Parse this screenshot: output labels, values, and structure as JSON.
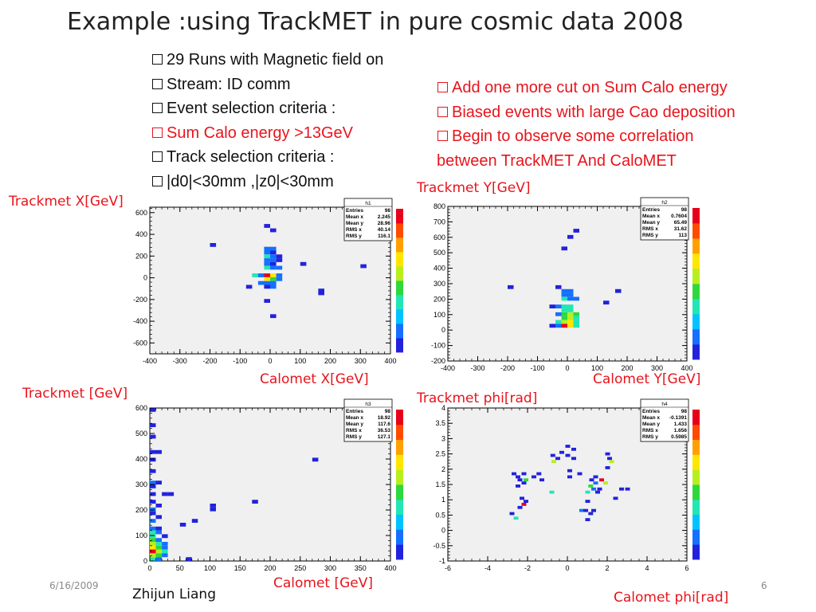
{
  "slide": {
    "title": "Example :using TrackMET in pure cosmic data 2008",
    "left_bullets": [
      "29 Runs with Magnetic field on",
      "Stream: ID comm",
      "Event selection criteria :",
      "Sum Calo energy >13GeV",
      "Track selection criteria :",
      "|d0|<30mm ,|z0|<30mm"
    ],
    "right_bullets": [
      "Add one more cut on Sum Calo energy",
      "Biased events with large Cao deposition",
      "Begin to observe some correlation",
      "between TrackMET And CaloMET"
    ],
    "labels": {
      "p1_y": "Trackmet X[GeV]",
      "p1_x": "Calomet X[GeV]",
      "p2_y": "Trackmet Y[GeV]",
      "p2_x": "Calomet Y[GeV]",
      "p3_y": "Trackmet [GeV]",
      "p3_x": "Calomet [GeV]",
      "p4_y": "Trackmet phi[rad]",
      "p4_x": "Calomet phi[rad]"
    },
    "date": "6/16/2009",
    "author": "Zhijun Liang",
    "page_number": "6",
    "colors": {
      "red_text": "#e8141c",
      "frame_bg": "#f0f0f0"
    }
  },
  "chart_data": [
    {
      "type": "heatmap",
      "name": "h1",
      "xlim": [
        -400,
        400
      ],
      "ylim": [
        -700,
        650
      ],
      "xticks": [
        -400,
        -300,
        -200,
        -100,
        0,
        100,
        200,
        300,
        400
      ],
      "yticks": [
        -600,
        -400,
        -200,
        0,
        200,
        400,
        600
      ],
      "bin_w": 20,
      "bin_h": 35,
      "stats": [
        [
          "Entries",
          "98"
        ],
        [
          "Mean x",
          "2.245"
        ],
        [
          "Mean y",
          "28.96"
        ],
        [
          "RMS x",
          "40.14"
        ],
        [
          "RMS y",
          "116.1"
        ]
      ],
      "bins": [
        [
          -200,
          285,
          1
        ],
        [
          300,
          90,
          1
        ],
        [
          -20,
          460,
          1
        ],
        [
          0,
          420,
          1
        ],
        [
          -20,
          250,
          2
        ],
        [
          0,
          250,
          2
        ],
        [
          -20,
          215,
          2
        ],
        [
          0,
          215,
          1
        ],
        [
          -20,
          180,
          3
        ],
        [
          0,
          180,
          2
        ],
        [
          20,
          180,
          1
        ],
        [
          -20,
          145,
          2
        ],
        [
          0,
          145,
          2
        ],
        [
          20,
          145,
          1
        ],
        [
          -20,
          110,
          2
        ],
        [
          0,
          110,
          1
        ],
        [
          -20,
          75,
          3
        ],
        [
          0,
          75,
          2
        ],
        [
          20,
          75,
          2
        ],
        [
          100,
          110,
          1
        ],
        [
          -60,
          5,
          3
        ],
        [
          -40,
          5,
          2
        ],
        [
          -20,
          5,
          8
        ],
        [
          0,
          5,
          6
        ],
        [
          20,
          5,
          2
        ],
        [
          -20,
          -30,
          6
        ],
        [
          0,
          -30,
          4
        ],
        [
          20,
          -30,
          2
        ],
        [
          -40,
          -65,
          2
        ],
        [
          -20,
          -65,
          2
        ],
        [
          0,
          -65,
          2
        ],
        [
          -80,
          -100,
          1
        ],
        [
          -20,
          -100,
          1
        ],
        [
          0,
          -100,
          2
        ],
        [
          160,
          -135,
          1
        ],
        [
          160,
          -160,
          1
        ],
        [
          -20,
          -230,
          1
        ],
        [
          0,
          -370,
          1
        ]
      ]
    },
    {
      "type": "heatmap",
      "name": "h2",
      "xlim": [
        -400,
        400
      ],
      "ylim": [
        -200,
        800
      ],
      "xticks": [
        -400,
        -300,
        -200,
        -100,
        0,
        100,
        200,
        300,
        400
      ],
      "yticks": [
        -200,
        -100,
        0,
        100,
        200,
        300,
        400,
        500,
        600,
        700,
        800
      ],
      "bin_w": 20,
      "bin_h": 25,
      "stats": [
        [
          "Entries",
          "98"
        ],
        [
          "Mean x",
          "0.7604"
        ],
        [
          "Mean y",
          "65.49"
        ],
        [
          "RMS x",
          "31.62"
        ],
        [
          "RMS y",
          "113"
        ]
      ],
      "bins": [
        [
          20,
          630,
          1
        ],
        [
          0,
          590,
          1
        ],
        [
          -20,
          515,
          1
        ],
        [
          -200,
          265,
          1
        ],
        [
          -40,
          265,
          1
        ],
        [
          -20,
          240,
          2
        ],
        [
          0,
          240,
          2
        ],
        [
          -20,
          215,
          2
        ],
        [
          0,
          215,
          2
        ],
        [
          -20,
          190,
          3
        ],
        [
          0,
          190,
          2
        ],
        [
          20,
          190,
          2
        ],
        [
          -60,
          140,
          1
        ],
        [
          -40,
          140,
          2
        ],
        [
          -20,
          140,
          3
        ],
        [
          0,
          140,
          3
        ],
        [
          -20,
          115,
          3
        ],
        [
          0,
          115,
          3
        ],
        [
          -40,
          90,
          2
        ],
        [
          -20,
          90,
          4
        ],
        [
          0,
          90,
          5
        ],
        [
          20,
          90,
          4
        ],
        [
          0,
          65,
          5
        ],
        [
          -20,
          65,
          4
        ],
        [
          20,
          65,
          3
        ],
        [
          -40,
          40,
          3
        ],
        [
          -20,
          40,
          5
        ],
        [
          0,
          40,
          6
        ],
        [
          20,
          40,
          3
        ],
        [
          -60,
          15,
          1
        ],
        [
          -40,
          15,
          2
        ],
        [
          -20,
          15,
          8
        ],
        [
          0,
          15,
          6
        ],
        [
          20,
          15,
          3
        ],
        [
          120,
          165,
          1
        ],
        [
          160,
          240,
          1
        ]
      ]
    },
    {
      "type": "heatmap",
      "name": "h3",
      "xlim": [
        0,
        400
      ],
      "ylim": [
        0,
        600
      ],
      "xticks": [
        0,
        50,
        100,
        150,
        200,
        250,
        300,
        350,
        400
      ],
      "yticks": [
        0,
        100,
        200,
        300,
        400,
        500,
        600
      ],
      "bin_w": 10,
      "bin_h": 15,
      "stats": [
        [
          "Entries",
          "98"
        ],
        [
          "Mean x",
          "18.92"
        ],
        [
          "Mean y",
          "117.6"
        ],
        [
          "RMS x",
          "36.53"
        ],
        [
          "RMS y",
          "127.1"
        ]
      ],
      "bins": [
        [
          0,
          585,
          1
        ],
        [
          0,
          525,
          1
        ],
        [
          0,
          480,
          1
        ],
        [
          0,
          420,
          1
        ],
        [
          10,
          420,
          1
        ],
        [
          0,
          390,
          1
        ],
        [
          0,
          345,
          1
        ],
        [
          0,
          300,
          2
        ],
        [
          10,
          300,
          1
        ],
        [
          0,
          285,
          1
        ],
        [
          0,
          255,
          1
        ],
        [
          20,
          255,
          1
        ],
        [
          30,
          255,
          1
        ],
        [
          0,
          225,
          1
        ],
        [
          10,
          210,
          1
        ],
        [
          0,
          195,
          2
        ],
        [
          0,
          180,
          1
        ],
        [
          10,
          165,
          1
        ],
        [
          0,
          150,
          2
        ],
        [
          0,
          120,
          2
        ],
        [
          10,
          120,
          1
        ],
        [
          0,
          105,
          3
        ],
        [
          10,
          105,
          2
        ],
        [
          0,
          90,
          3
        ],
        [
          20,
          90,
          1
        ],
        [
          0,
          75,
          4
        ],
        [
          10,
          75,
          2
        ],
        [
          0,
          60,
          5
        ],
        [
          10,
          60,
          3
        ],
        [
          20,
          60,
          2
        ],
        [
          0,
          45,
          6
        ],
        [
          10,
          45,
          4
        ],
        [
          20,
          45,
          2
        ],
        [
          0,
          30,
          8
        ],
        [
          10,
          30,
          5
        ],
        [
          20,
          30,
          3
        ],
        [
          0,
          15,
          5
        ],
        [
          10,
          15,
          4
        ],
        [
          20,
          15,
          2
        ],
        [
          0,
          0,
          3
        ],
        [
          10,
          0,
          2
        ],
        [
          60,
          0,
          1
        ],
        [
          50,
          135,
          1
        ],
        [
          70,
          150,
          1
        ],
        [
          100,
          195,
          1
        ],
        [
          100,
          210,
          1
        ],
        [
          170,
          225,
          1
        ],
        [
          270,
          390,
          1
        ]
      ]
    },
    {
      "type": "heatmap",
      "name": "h4",
      "xlim": [
        -6,
        6
      ],
      "ylim": [
        -1,
        4
      ],
      "xticks": [
        -6,
        -4,
        -2,
        0,
        2,
        4,
        6
      ],
      "yticks": [
        -1,
        -0.5,
        0,
        0.5,
        1,
        1.5,
        2,
        2.5,
        3,
        3.5,
        4
      ],
      "bin_w": 0.24,
      "bin_h": 0.1,
      "stats": [
        [
          "Entries",
          "98"
        ],
        [
          "Mean x",
          "-0.1391"
        ],
        [
          "Mean y",
          "1.433"
        ],
        [
          "RMS x",
          "1.656"
        ],
        [
          "RMS y",
          "0.5985"
        ]
      ],
      "bins": [
        [
          -0.1,
          2.7,
          1
        ],
        [
          0.2,
          2.6,
          1
        ],
        [
          -0.4,
          2.5,
          1
        ],
        [
          -0.1,
          2.4,
          1
        ],
        [
          -0.85,
          2.4,
          1
        ],
        [
          -0.6,
          2.3,
          1
        ],
        [
          -0.8,
          2.2,
          5
        ],
        [
          0.2,
          2.3,
          1
        ],
        [
          1.9,
          2.45,
          1
        ],
        [
          2.0,
          2.3,
          1
        ],
        [
          2.1,
          2.2,
          5
        ],
        [
          1.9,
          2.0,
          1
        ],
        [
          -2.8,
          1.8,
          1
        ],
        [
          -2.3,
          1.8,
          1
        ],
        [
          -1.55,
          1.8,
          1
        ],
        [
          -2.6,
          1.7,
          1
        ],
        [
          -1.8,
          1.7,
          1
        ],
        [
          -2.5,
          1.6,
          1
        ],
        [
          -2.2,
          1.6,
          4
        ],
        [
          -1.4,
          1.6,
          1
        ],
        [
          -2.3,
          1.5,
          1
        ],
        [
          -2.6,
          1.4,
          1
        ],
        [
          0,
          1.9,
          1
        ],
        [
          0.5,
          1.8,
          1
        ],
        [
          0,
          1.7,
          1
        ],
        [
          1.3,
          1.7,
          1
        ],
        [
          1.6,
          1.6,
          8
        ],
        [
          1.1,
          1.6,
          1
        ],
        [
          1.3,
          1.5,
          2
        ],
        [
          1.8,
          1.5,
          5
        ],
        [
          1.05,
          1.4,
          4
        ],
        [
          1.2,
          1.3,
          2
        ],
        [
          1.5,
          1.3,
          1
        ],
        [
          2.6,
          1.3,
          1
        ],
        [
          2.9,
          1.3,
          1
        ],
        [
          -0.9,
          1.2,
          3
        ],
        [
          0.9,
          1.2,
          3
        ],
        [
          1.4,
          1.2,
          1
        ],
        [
          2.3,
          1.0,
          1
        ],
        [
          -2.4,
          1.0,
          1
        ],
        [
          -2.2,
          0.9,
          1
        ],
        [
          -2.3,
          0.8,
          8
        ],
        [
          -2.5,
          0.7,
          1
        ],
        [
          -2.9,
          0.5,
          1
        ],
        [
          -2.7,
          0.35,
          3
        ],
        [
          0.9,
          0.9,
          1
        ],
        [
          0.6,
          0.6,
          2
        ],
        [
          0.8,
          0.6,
          1
        ],
        [
          1.2,
          0.6,
          1
        ],
        [
          1.05,
          0.5,
          1
        ],
        [
          0.9,
          0.3,
          1
        ]
      ]
    }
  ]
}
